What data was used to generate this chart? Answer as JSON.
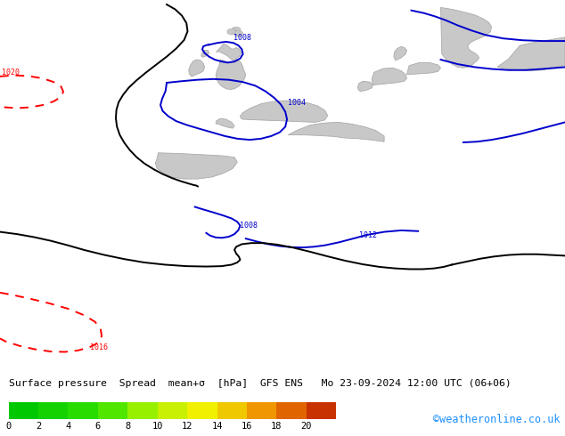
{
  "title": "Surface pressure  Spread  mean+σ  [hPa]  GFS ENS   Mo 23-09-2024 12:00 UTC (06+06)",
  "watermark": "©weatheronline.co.uk",
  "colorbar_values": [
    0,
    2,
    4,
    6,
    8,
    10,
    12,
    14,
    16,
    18,
    20
  ],
  "colorbar_colors": [
    "#00c800",
    "#14d200",
    "#28dc00",
    "#50e600",
    "#96f000",
    "#c8f000",
    "#f0f000",
    "#f0c800",
    "#f09600",
    "#e06400",
    "#c83200",
    "#961400"
  ],
  "bg_color": "#00dd00",
  "map_bg": "#00dd00",
  "title_fontsize": 9,
  "watermark_color": "#1e90ff",
  "isobar_blue_color": "#0000cc",
  "isobar_black_color": "#000000",
  "isobar_red_color": "#ff0000",
  "land_color": "#c8c8c8",
  "coast_color": "#aaaaaa",
  "figsize": [
    6.34,
    4.9
  ],
  "dpi": 100
}
